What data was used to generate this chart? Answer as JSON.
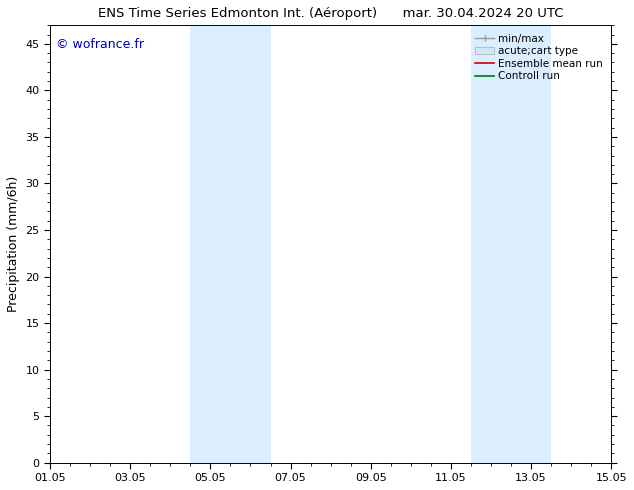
{
  "title": "ENS Time Series Edmonton Int. (Aéroport)      mar. 30.04.2024 20 UTC",
  "xlabel_ticks": [
    "01.05",
    "03.05",
    "05.05",
    "07.05",
    "09.05",
    "11.05",
    "13.05",
    "15.05"
  ],
  "xlabel_tick_positions": [
    0,
    2,
    4,
    6,
    8,
    10,
    12,
    14
  ],
  "ylabel": "Precipitation (mm/6h)",
  "ylim": [
    0,
    47
  ],
  "yticks": [
    0,
    5,
    10,
    15,
    20,
    25,
    30,
    35,
    40,
    45
  ],
  "xlim": [
    0,
    14
  ],
  "background_color": "#ffffff",
  "plot_bg_color": "#ffffff",
  "watermark": "© wofrance.fr",
  "watermark_color": "#0000bb",
  "shaded_color": "#daeeff",
  "shaded_regions": [
    {
      "xmin": 3.5,
      "xmax": 5.5
    },
    {
      "xmin": 10.5,
      "xmax": 12.5
    }
  ],
  "legend_min_max_color": "#999999",
  "legend_band_color": "#d0e8f8",
  "legend_ensemble_color": "#cc0000",
  "legend_control_color": "#007700",
  "title_fontsize": 9.5,
  "tick_fontsize": 8,
  "ylabel_fontsize": 9,
  "watermark_fontsize": 9,
  "legend_fontsize": 7.5
}
